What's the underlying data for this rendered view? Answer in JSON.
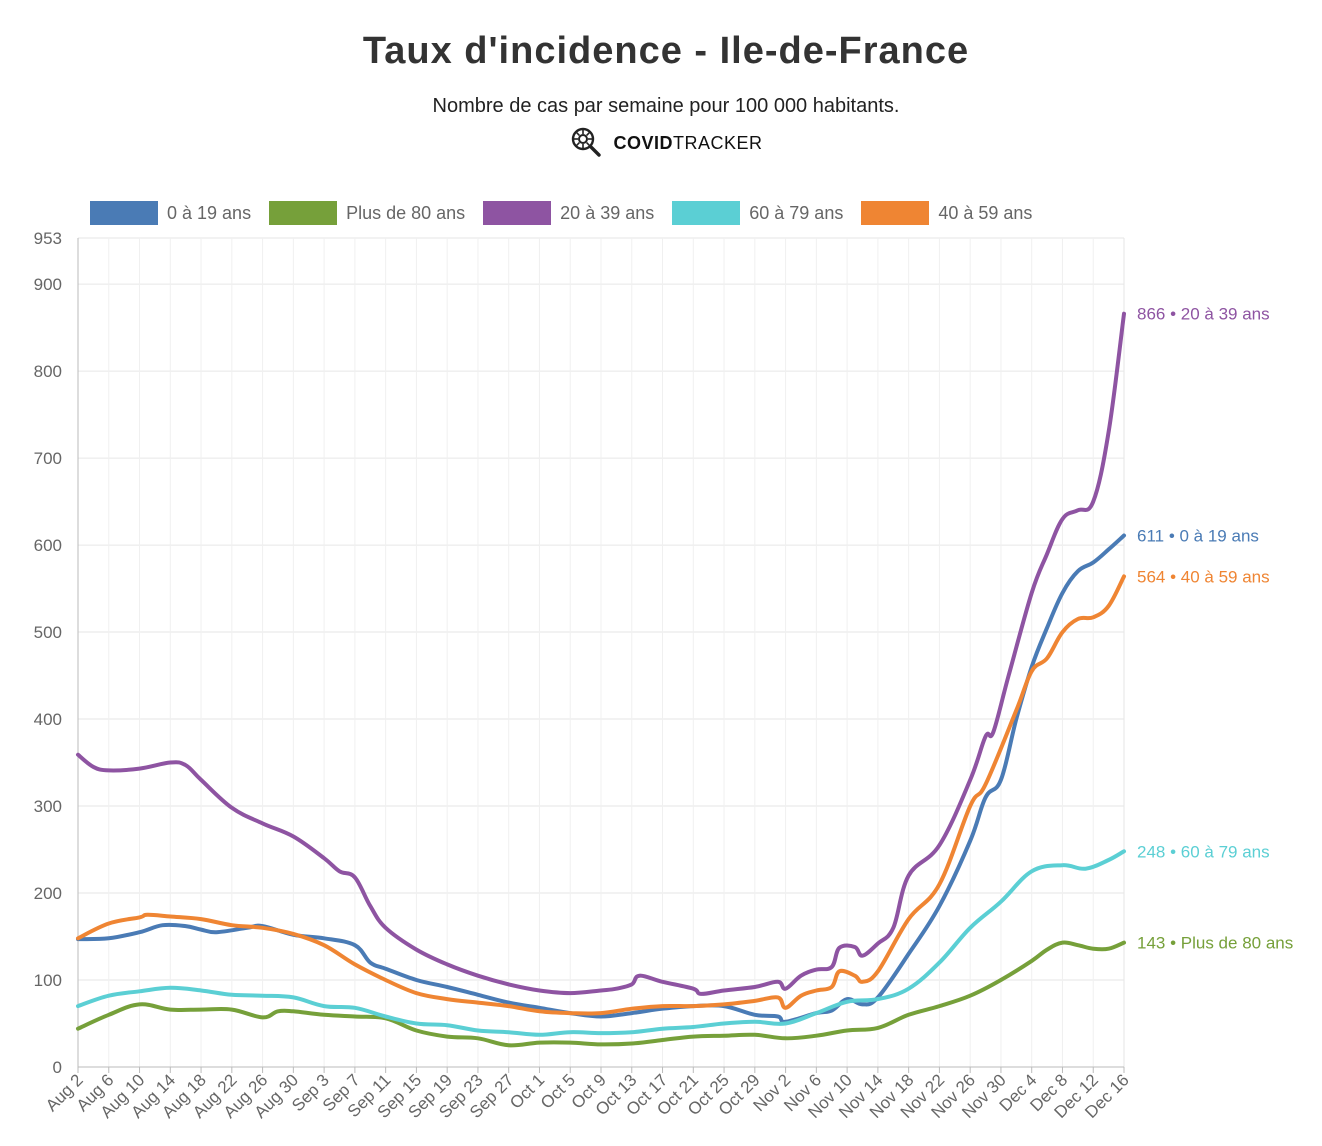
{
  "chart_data": {
    "type": "line",
    "title": "Taux d'incidence - Ile-de-France",
    "subtitle": "Nombre de cas par semaine pour 100 000 habitants.",
    "brand": {
      "bold": "COVID",
      "regular": "TRACKER",
      "icon": "virus-magnifier-icon"
    },
    "ylim": [
      0,
      953
    ],
    "yticks": [
      0,
      100,
      200,
      300,
      400,
      500,
      600,
      700,
      800,
      900,
      953
    ],
    "x_range": [
      "Aug 2",
      "Dec 16"
    ],
    "xticks": [
      "Aug 2",
      "Aug 6",
      "Aug 10",
      "Aug 14",
      "Aug 18",
      "Aug 22",
      "Aug 26",
      "Aug 30",
      "Sep 3",
      "Sep 7",
      "Sep 11",
      "Sep 15",
      "Sep 19",
      "Sep 23",
      "Sep 27",
      "Oct 1",
      "Oct 5",
      "Oct 9",
      "Oct 13",
      "Oct 17",
      "Oct 21",
      "Oct 25",
      "Oct 29",
      "Nov 2",
      "Nov 6",
      "Nov 10",
      "Nov 14",
      "Nov 18",
      "Nov 22",
      "Nov 26",
      "Nov 30",
      "Dec 4",
      "Dec 8",
      "Dec 12",
      "Dec 16"
    ],
    "grid": true,
    "legend_position": "top-left",
    "series": [
      {
        "name": "0 à 19 ans",
        "color": "#4a7bb5",
        "end_label": "611 • 0 à 19 ans",
        "points": [
          [
            "Aug 2",
            147
          ],
          [
            "Aug 6",
            148
          ],
          [
            "Aug 10",
            155
          ],
          [
            "Aug 13",
            163
          ],
          [
            "Aug 16",
            162
          ],
          [
            "Aug 18",
            158
          ],
          [
            "Aug 20",
            155
          ],
          [
            "Aug 24",
            160
          ],
          [
            "Aug 26",
            162
          ],
          [
            "Aug 30",
            152
          ],
          [
            "Sep 3",
            148
          ],
          [
            "Sep 7",
            140
          ],
          [
            "Sep 9",
            120
          ],
          [
            "Sep 11",
            113
          ],
          [
            "Sep 15",
            100
          ],
          [
            "Sep 19",
            92
          ],
          [
            "Sep 23",
            83
          ],
          [
            "Sep 27",
            74
          ],
          [
            "Oct 1",
            68
          ],
          [
            "Oct 5",
            62
          ],
          [
            "Oct 9",
            58
          ],
          [
            "Oct 13",
            62
          ],
          [
            "Oct 17",
            67
          ],
          [
            "Oct 21",
            70
          ],
          [
            "Oct 25",
            70
          ],
          [
            "Oct 29",
            60
          ],
          [
            "Nov 1",
            58
          ],
          [
            "Nov 2",
            52
          ],
          [
            "Nov 6",
            62
          ],
          [
            "Nov 8",
            65
          ],
          [
            "Nov 10",
            78
          ],
          [
            "Nov 12",
            72
          ],
          [
            "Nov 14",
            80
          ],
          [
            "Nov 18",
            130
          ],
          [
            "Nov 22",
            185
          ],
          [
            "Nov 26",
            260
          ],
          [
            "Nov 28",
            310
          ],
          [
            "Nov 30",
            330
          ],
          [
            "Dec 2",
            400
          ],
          [
            "Dec 4",
            460
          ],
          [
            "Dec 6",
            505
          ],
          [
            "Dec 8",
            545
          ],
          [
            "Dec 10",
            570
          ],
          [
            "Dec 12",
            580
          ],
          [
            "Dec 14",
            595
          ],
          [
            "Dec 16",
            611
          ]
        ]
      },
      {
        "name": "Plus de 80 ans",
        "color": "#76a03a",
        "end_label": "143 • Plus de 80 ans",
        "points": [
          [
            "Aug 2",
            44
          ],
          [
            "Aug 6",
            60
          ],
          [
            "Aug 10",
            72
          ],
          [
            "Aug 14",
            66
          ],
          [
            "Aug 18",
            66
          ],
          [
            "Aug 22",
            66
          ],
          [
            "Aug 26",
            57
          ],
          [
            "Aug 28",
            64
          ],
          [
            "Aug 30",
            64
          ],
          [
            "Sep 3",
            60
          ],
          [
            "Sep 7",
            58
          ],
          [
            "Sep 11",
            56
          ],
          [
            "Sep 15",
            42
          ],
          [
            "Sep 19",
            35
          ],
          [
            "Sep 23",
            33
          ],
          [
            "Sep 27",
            25
          ],
          [
            "Oct 1",
            28
          ],
          [
            "Oct 5",
            28
          ],
          [
            "Oct 9",
            26
          ],
          [
            "Oct 13",
            27
          ],
          [
            "Oct 17",
            31
          ],
          [
            "Oct 21",
            35
          ],
          [
            "Oct 25",
            36
          ],
          [
            "Oct 29",
            37
          ],
          [
            "Nov 2",
            33
          ],
          [
            "Nov 6",
            36
          ],
          [
            "Nov 10",
            42
          ],
          [
            "Nov 14",
            45
          ],
          [
            "Nov 18",
            60
          ],
          [
            "Nov 22",
            70
          ],
          [
            "Nov 26",
            82
          ],
          [
            "Nov 30",
            100
          ],
          [
            "Dec 4",
            122
          ],
          [
            "Dec 6",
            135
          ],
          [
            "Dec 8",
            143
          ],
          [
            "Dec 10",
            140
          ],
          [
            "Dec 12",
            136
          ],
          [
            "Dec 14",
            136
          ],
          [
            "Dec 16",
            143
          ]
        ]
      },
      {
        "name": "20 à 39 ans",
        "color": "#8e54a2",
        "end_label": "866 • 20 à 39 ans",
        "points": [
          [
            "Aug 2",
            359
          ],
          [
            "Aug 4",
            345
          ],
          [
            "Aug 6",
            341
          ],
          [
            "Aug 10",
            343
          ],
          [
            "Aug 14",
            350
          ],
          [
            "Aug 16",
            347
          ],
          [
            "Aug 18",
            330
          ],
          [
            "Aug 22",
            298
          ],
          [
            "Aug 26",
            280
          ],
          [
            "Aug 30",
            265
          ],
          [
            "Sep 3",
            240
          ],
          [
            "Sep 5",
            225
          ],
          [
            "Sep 7",
            218
          ],
          [
            "Sep 9",
            185
          ],
          [
            "Sep 11",
            160
          ],
          [
            "Sep 15",
            135
          ],
          [
            "Sep 19",
            118
          ],
          [
            "Sep 23",
            105
          ],
          [
            "Sep 27",
            95
          ],
          [
            "Oct 1",
            88
          ],
          [
            "Oct 5",
            85
          ],
          [
            "Oct 9",
            88
          ],
          [
            "Oct 11",
            90
          ],
          [
            "Oct 13",
            95
          ],
          [
            "Oct 14",
            105
          ],
          [
            "Oct 17",
            98
          ],
          [
            "Oct 21",
            90
          ],
          [
            "Oct 22",
            84
          ],
          [
            "Oct 25",
            88
          ],
          [
            "Oct 29",
            92
          ],
          [
            "Nov 1",
            98
          ],
          [
            "Nov 2",
            90
          ],
          [
            "Nov 4",
            105
          ],
          [
            "Nov 6",
            112
          ],
          [
            "Nov 8",
            115
          ],
          [
            "Nov 9",
            137
          ],
          [
            "Nov 11",
            138
          ],
          [
            "Nov 12",
            128
          ],
          [
            "Nov 14",
            142
          ],
          [
            "Nov 16",
            160
          ],
          [
            "Nov 18",
            220
          ],
          [
            "Nov 22",
            255
          ],
          [
            "Nov 26",
            330
          ],
          [
            "Nov 28",
            380
          ],
          [
            "Nov 29",
            385
          ],
          [
            "Dec 1",
            450
          ],
          [
            "Dec 4",
            545
          ],
          [
            "Dec 6",
            590
          ],
          [
            "Dec 8",
            630
          ],
          [
            "Dec 10",
            640
          ],
          [
            "Dec 12",
            650
          ],
          [
            "Dec 14",
            730
          ],
          [
            "Dec 16",
            866
          ]
        ]
      },
      {
        "name": "60 à 79 ans",
        "color": "#5bcfd4",
        "end_label": "248 • 60 à 79 ans",
        "points": [
          [
            "Aug 2",
            70
          ],
          [
            "Aug 6",
            82
          ],
          [
            "Aug 10",
            87
          ],
          [
            "Aug 14",
            91
          ],
          [
            "Aug 18",
            88
          ],
          [
            "Aug 22",
            83
          ],
          [
            "Aug 26",
            82
          ],
          [
            "Aug 30",
            80
          ],
          [
            "Sep 3",
            70
          ],
          [
            "Sep 7",
            68
          ],
          [
            "Sep 11",
            58
          ],
          [
            "Sep 15",
            50
          ],
          [
            "Sep 19",
            48
          ],
          [
            "Sep 23",
            42
          ],
          [
            "Sep 27",
            40
          ],
          [
            "Oct 1",
            37
          ],
          [
            "Oct 5",
            40
          ],
          [
            "Oct 9",
            39
          ],
          [
            "Oct 13",
            40
          ],
          [
            "Oct 17",
            44
          ],
          [
            "Oct 21",
            46
          ],
          [
            "Oct 25",
            50
          ],
          [
            "Oct 29",
            52
          ],
          [
            "Nov 2",
            50
          ],
          [
            "Nov 6",
            62
          ],
          [
            "Nov 10",
            75
          ],
          [
            "Nov 14",
            78
          ],
          [
            "Nov 18",
            90
          ],
          [
            "Nov 22",
            120
          ],
          [
            "Nov 26",
            160
          ],
          [
            "Nov 30",
            190
          ],
          [
            "Dec 4",
            225
          ],
          [
            "Dec 8",
            232
          ],
          [
            "Dec 11",
            228
          ],
          [
            "Dec 14",
            238
          ],
          [
            "Dec 16",
            248
          ]
        ]
      },
      {
        "name": "40 à 59 ans",
        "color": "#ef8533",
        "end_label": "564 • 40 à 59 ans",
        "points": [
          [
            "Aug 2",
            148
          ],
          [
            "Aug 6",
            165
          ],
          [
            "Aug 10",
            172
          ],
          [
            "Aug 11",
            175
          ],
          [
            "Aug 14",
            173
          ],
          [
            "Aug 18",
            170
          ],
          [
            "Aug 22",
            163
          ],
          [
            "Aug 26",
            160
          ],
          [
            "Aug 30",
            153
          ],
          [
            "Sep 3",
            140
          ],
          [
            "Sep 7",
            118
          ],
          [
            "Sep 11",
            100
          ],
          [
            "Sep 15",
            85
          ],
          [
            "Sep 19",
            78
          ],
          [
            "Sep 23",
            74
          ],
          [
            "Sep 27",
            70
          ],
          [
            "Oct 1",
            64
          ],
          [
            "Oct 5",
            62
          ],
          [
            "Oct 9",
            62
          ],
          [
            "Oct 13",
            67
          ],
          [
            "Oct 17",
            70
          ],
          [
            "Oct 21",
            70
          ],
          [
            "Oct 25",
            72
          ],
          [
            "Oct 29",
            76
          ],
          [
            "Nov 1",
            80
          ],
          [
            "Nov 2",
            68
          ],
          [
            "Nov 4",
            82
          ],
          [
            "Nov 6",
            88
          ],
          [
            "Nov 8",
            92
          ],
          [
            "Nov 9",
            110
          ],
          [
            "Nov 11",
            105
          ],
          [
            "Nov 12",
            98
          ],
          [
            "Nov 14",
            110
          ],
          [
            "Nov 18",
            170
          ],
          [
            "Nov 22",
            210
          ],
          [
            "Nov 26",
            300
          ],
          [
            "Nov 28",
            325
          ],
          [
            "Dec 2",
            410
          ],
          [
            "Dec 4",
            455
          ],
          [
            "Dec 6",
            470
          ],
          [
            "Dec 8",
            500
          ],
          [
            "Dec 10",
            515
          ],
          [
            "Dec 12",
            517
          ],
          [
            "Dec 14",
            530
          ],
          [
            "Dec 16",
            564
          ]
        ]
      }
    ]
  }
}
